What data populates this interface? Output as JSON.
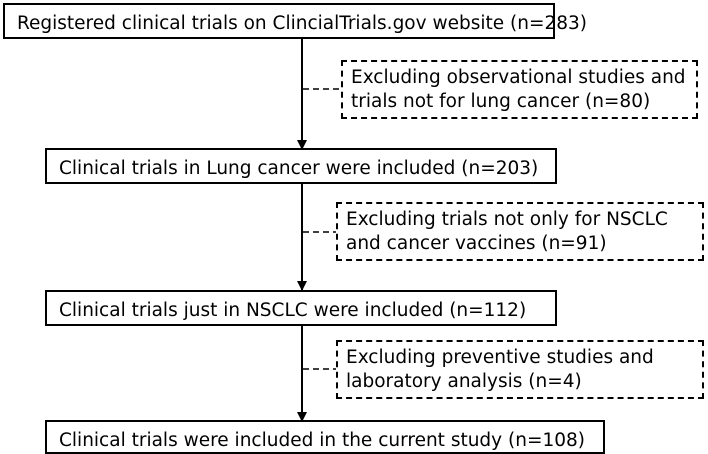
{
  "flowchart": {
    "boxes": [
      {
        "id": "step-1",
        "lines": [
          "Registered clinical trials on ClincialTrials.gov website (n=283)"
        ]
      },
      {
        "id": "exclusion-1",
        "lines": [
          "Excluding observational studies and",
          "trials not for lung cancer  (n=80)"
        ]
      },
      {
        "id": "step-2",
        "lines": [
          "Clinical trials in Lung cancer were included (n=203)"
        ]
      },
      {
        "id": "exclusion-2",
        "lines": [
          "Excluding trials not only for NSCLC",
          "and cancer vaccines  (n=91)"
        ]
      },
      {
        "id": "step-3",
        "lines": [
          "Clinical trials just in NSCLC were included (n=112)"
        ]
      },
      {
        "id": "exclusion-3",
        "lines": [
          "Excluding preventive studies and",
          "laboratory analysis  (n=4)"
        ]
      },
      {
        "id": "step-4",
        "lines": [
          "Clinical trials were included in the current study (n=108)"
        ]
      }
    ]
  },
  "colors": {
    "stroke": "#000000",
    "background": "#ffffff"
  }
}
